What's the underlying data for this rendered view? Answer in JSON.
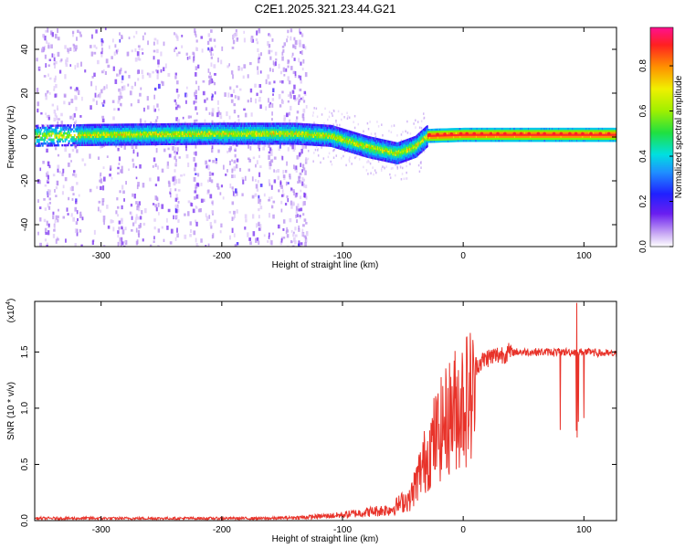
{
  "title": "C2E1.2025.321.23.44.G21",
  "chart_data": [
    {
      "type": "heatmap",
      "xlabel": "Height of straight line (km)",
      "ylabel": "Frequency (Hz)",
      "xlim": [
        -355,
        127
      ],
      "ylim": [
        -50,
        50
      ],
      "x_ticks": [
        -300,
        -200,
        -100,
        0,
        100
      ],
      "y_ticks": [
        -40,
        -20,
        0,
        20,
        40
      ],
      "colorbar": {
        "label": "Normalized spectral amplitude",
        "range": [
          0,
          0.97
        ],
        "ticks": [
          0.0,
          0.2,
          0.4,
          0.6,
          0.8
        ]
      },
      "ridge": {
        "description_points_km_hz": [
          [
            -355,
            1
          ],
          [
            -300,
            1.5
          ],
          [
            -200,
            2
          ],
          [
            -140,
            2
          ],
          [
            -110,
            1
          ],
          [
            -80,
            -4
          ],
          [
            -55,
            -7
          ],
          [
            -40,
            -4
          ],
          [
            -30,
            1
          ],
          [
            0,
            1.5
          ],
          [
            127,
            1.5
          ]
        ]
      }
    },
    {
      "type": "line",
      "xlabel": "Height of straight line (km)",
      "ylabel": "SNR (10 * v/v)",
      "y_multiplier": "(x10^4)",
      "y_multiplier_base": "(x10",
      "y_multiplier_exp": "4",
      "xlim": [
        -355,
        127
      ],
      "ylim": [
        0,
        1.95
      ],
      "x_ticks": [
        -300,
        -200,
        -100,
        0,
        100
      ],
      "y_ticks": [
        0.0,
        0.5,
        1.0,
        1.5
      ],
      "series": [
        {
          "name": "SNR",
          "color": "#e8332a",
          "envelope_km": [
            -355,
            -160,
            -130,
            -100,
            -60,
            -45,
            -35,
            -25,
            -10,
            0,
            20,
            40,
            60,
            80,
            100,
            127
          ],
          "envelope_value": [
            0.02,
            0.02,
            0.03,
            0.05,
            0.1,
            0.2,
            0.55,
            0.85,
            1.15,
            1.3,
            1.45,
            1.5,
            1.5,
            1.5,
            1.5,
            1.48
          ]
        }
      ]
    }
  ]
}
